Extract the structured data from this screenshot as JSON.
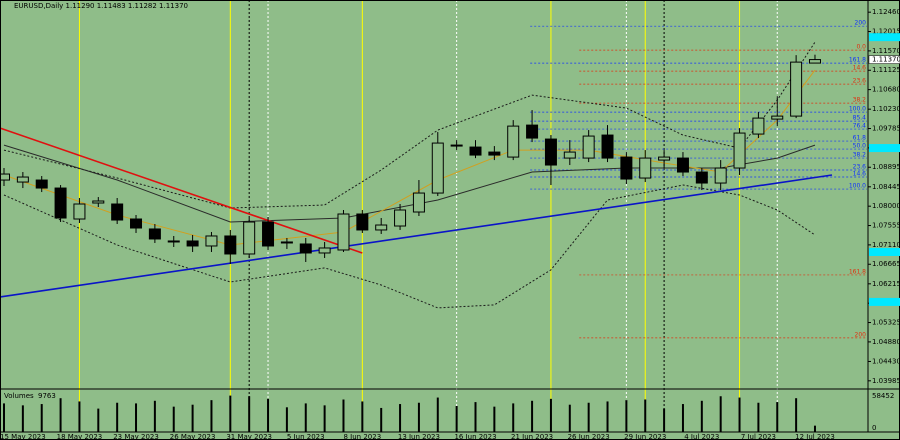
{
  "chart_data": {
    "type": "candlestick",
    "title": "EURUSD,Daily  1.11290 1.11483 1.11282 1.11370",
    "categories": [
      null,
      "15 May 2023",
      null,
      null,
      "18 May 2023",
      null,
      null,
      "23 May 2023",
      null,
      null,
      "26 May 2023",
      null,
      null,
      "31 May 2023",
      null,
      null,
      "5 Jun 2023",
      null,
      null,
      "8 Jun 2023",
      null,
      null,
      "13 Jun 2023",
      null,
      null,
      "16 Jun 2023",
      null,
      null,
      "21 Jun 2023",
      null,
      null,
      "26 Jun 2023",
      null,
      null,
      "29 Jun 2023",
      null,
      null,
      "4 Jul 2023",
      null,
      null,
      "7 Jul 2023",
      null,
      null,
      "12 Jul 2023"
    ],
    "open": [
      1.08601,
      1.08555,
      1.08601,
      1.08417,
      1.07705,
      1.08073,
      1.0805,
      1.07705,
      1.07476,
      1.07177,
      1.072,
      1.07085,
      1.07315,
      1.06901,
      1.07636,
      1.07177,
      1.07131,
      1.06924,
      1.06993,
      1.0782,
      1.07453,
      1.07544,
      1.07866,
      1.08302,
      1.09405,
      1.09359,
      1.09244,
      1.09129,
      1.09864,
      1.09543,
      1.09106,
      1.09106,
      1.09635,
      1.09129,
      1.08647,
      1.0906,
      1.09106,
      1.08785,
      1.08532,
      1.08877,
      1.09658,
      1.10002,
      1.10071,
      1.1129
    ],
    "high": [
      1.08877,
      1.08785,
      1.08693,
      1.08486,
      1.08188,
      1.0821,
      1.08188,
      1.07797,
      1.0759,
      1.07315,
      1.07338,
      1.07407,
      1.07453,
      1.07728,
      1.07751,
      1.07269,
      1.07269,
      1.07177,
      1.07912,
      1.07912,
      1.07728,
      1.0805,
      1.08601,
      1.09704,
      1.0952,
      1.0952,
      1.09382,
      1.09979,
      1.10209,
      1.09635,
      1.0952,
      1.0975,
      1.09864,
      1.09244,
      1.0929,
      1.0929,
      1.09244,
      1.08877,
      1.0906,
      1.09795,
      1.10163,
      1.1053,
      1.11472,
      1.11483
    ],
    "low": [
      1.08463,
      1.08417,
      1.08325,
      1.07636,
      1.07613,
      1.07981,
      1.0759,
      1.07384,
      1.07154,
      1.07062,
      1.06947,
      1.06947,
      1.06672,
      1.06809,
      1.06993,
      1.07016,
      1.06717,
      1.06809,
      1.06947,
      1.07384,
      1.07361,
      1.07453,
      1.07774,
      1.08234,
      1.0929,
      1.09106,
      1.0906,
      1.0906,
      1.09474,
      1.08486,
      1.08946,
      1.09014,
      1.09014,
      1.08509,
      1.08555,
      1.08877,
      1.08693,
      1.08371,
      1.08371,
      1.08716,
      1.09566,
      1.09841,
      1.10025,
      1.11282
    ],
    "close": [
      1.08739,
      1.0867,
      1.08417,
      1.07728,
      1.0805,
      1.08119,
      1.07682,
      1.07498,
      1.07246,
      1.072,
      1.07085,
      1.07315,
      1.06901,
      1.07636,
      1.07085,
      1.07154,
      1.06924,
      1.07039,
      1.0782,
      1.07453,
      1.07567,
      1.07912,
      1.08302,
      1.09451,
      1.09382,
      1.09175,
      1.09175,
      1.09841,
      1.09566,
      1.08946,
      1.09244,
      1.09612,
      1.09106,
      1.08624,
      1.09106,
      1.09129,
      1.08785,
      1.08532,
      1.08877,
      1.09681,
      1.10025,
      1.10071,
      1.11312,
      1.1137
    ],
    "up_color": "#8fbd89",
    "down_color": "#000000",
    "ylim": [
      1.0382,
      1.1274
    ],
    "yticks": [
      {
        "value": 1.1246,
        "label": "1.12460"
      },
      {
        "value": 1.12015,
        "label": "1.12015"
      },
      {
        "value": 1.1157,
        "label": "1.11570"
      },
      {
        "value": 1.11125,
        "label": "1.11125"
      },
      {
        "value": 1.1068,
        "label": "1.10680"
      },
      {
        "value": 1.1023,
        "label": "1.10230"
      },
      {
        "value": 1.09785,
        "label": "1.09785"
      },
      {
        "value": 1.0934,
        "label": "1.09340"
      },
      {
        "value": 1.08895,
        "label": "1.08895"
      },
      {
        "value": 1.08445,
        "label": "1.08445"
      },
      {
        "value": 1.08,
        "label": "1.08000"
      },
      {
        "value": 1.07555,
        "label": "1.07555"
      },
      {
        "value": 1.0711,
        "label": "1.07110"
      },
      {
        "value": 1.06665,
        "label": "1.06665"
      },
      {
        "value": 1.06215,
        "label": "1.06215"
      },
      {
        "value": 1.0577,
        "label": "1.05770"
      },
      {
        "value": 1.05325,
        "label": "1.05325"
      },
      {
        "value": 1.0488,
        "label": "1.04880"
      },
      {
        "value": 1.0443,
        "label": "1.04430"
      },
      {
        "value": 1.03985,
        "label": "1.03985"
      }
    ],
    "current_price": {
      "value": 1.1137,
      "label": "1.11370"
    },
    "highlight_levels": {
      "color": "#00e8ff",
      "values": [
        1.11886,
        1.09336,
        1.06947,
        1.05799
      ]
    },
    "indicators": [
      {
        "color": "#1a1a1a",
        "dash": "2,2",
        "x": [
          0,
          6,
          12,
          17,
          20,
          23,
          28,
          33,
          36,
          39,
          41,
          43
        ],
        "values": [
          1.0929,
          1.08647,
          1.07958,
          1.08027,
          1.08831,
          1.0975,
          1.10553,
          1.10255,
          1.09635,
          1.09336,
          1.10439,
          1.11771
        ]
      },
      {
        "color": "#1a1a1a",
        "dash": "2,2",
        "x": [
          0,
          6,
          12,
          17,
          20,
          23,
          26,
          29,
          32,
          36,
          39,
          41,
          43
        ],
        "values": [
          1.08256,
          1.07108,
          1.06258,
          1.0658,
          1.06189,
          1.05661,
          1.0573,
          1.06534,
          1.08142,
          1.08486,
          1.08256,
          1.07912,
          1.07338
        ]
      },
      {
        "color": "#2a2a2a",
        "dash": "",
        "x": [
          0,
          6,
          12,
          18,
          23,
          28,
          33,
          38,
          41,
          43
        ],
        "values": [
          1.09405,
          1.08601,
          1.07636,
          1.07728,
          1.08142,
          1.08785,
          1.08877,
          1.08877,
          1.09106,
          1.09405
        ]
      },
      {
        "color": "#d0a020",
        "dash": "",
        "x": [
          0,
          6,
          12,
          18,
          23,
          27,
          31,
          35,
          38,
          41,
          43
        ],
        "values": [
          1.08716,
          1.07797,
          1.07108,
          1.07407,
          1.08601,
          1.0929,
          1.0929,
          1.08992,
          1.08785,
          1.09979,
          1.11128
        ]
      }
    ],
    "trendlines": [
      {
        "color": "#e01010",
        "x": [
          -0.2,
          19
        ],
        "values": [
          1.09795,
          1.06924
        ]
      },
      {
        "color": "#0a14c8",
        "x": [
          -0.2,
          43.9
        ],
        "values": [
          1.05914,
          1.08716
        ]
      }
    ],
    "vertical_markers": [
      {
        "color": "#ffff00",
        "dash": "",
        "at": [
          4,
          12,
          19,
          29,
          34,
          39
        ]
      },
      {
        "color": "#ffffff",
        "dash": "2,2",
        "at": [
          14,
          24,
          33,
          41
        ]
      },
      {
        "color": "#000000",
        "dash": "2,2",
        "at": [
          13,
          35
        ]
      }
    ],
    "fibonacci": [
      {
        "color": "#1030ff",
        "start": 27.9,
        "levels": [
          {
            "label": "200",
            "price": 1.12138
          },
          {
            "label": "161.8",
            "price": 1.11289
          },
          {
            "label": "100.0",
            "price": 1.10163
          },
          {
            "label": "85.4",
            "price": 1.09956
          },
          {
            "label": "76.4",
            "price": 1.09773
          },
          {
            "label": "61.8",
            "price": 1.09497
          },
          {
            "label": "50.0",
            "price": 1.09313
          },
          {
            "label": "38.2",
            "price": 1.09106
          },
          {
            "label": "23.6",
            "price": 1.08831
          },
          {
            "label": "14.6",
            "price": 1.0867
          },
          {
            "label": "100.0",
            "price": 1.08394
          }
        ]
      },
      {
        "color": "#e03010",
        "start": 30.5,
        "levels": [
          {
            "label": "0.0",
            "price": 1.11587
          },
          {
            "label": "14.6",
            "price": 1.11105
          },
          {
            "label": "23.6",
            "price": 1.10806
          },
          {
            "label": "38.2",
            "price": 1.1037
          },
          {
            "label": "161.8",
            "price": 1.06419
          },
          {
            "label": "200",
            "price": 1.04972
          }
        ]
      }
    ],
    "volume": {
      "name": "Volumes",
      "color": "#000000",
      "values": [
        44000,
        41000,
        43000,
        52000,
        47000,
        36000,
        45000,
        44000,
        48000,
        39000,
        42000,
        49000,
        56000,
        55000,
        51000,
        38000,
        44000,
        41000,
        50000,
        47000,
        37000,
        43000,
        45000,
        53000,
        40000,
        46000,
        39000,
        44000,
        48000,
        51000,
        42000,
        45000,
        47000,
        49000,
        50000,
        36000,
        43000,
        48000,
        55000,
        53000,
        45000,
        46000,
        52000,
        9763
      ],
      "ylim": [
        0,
        58452
      ],
      "yticks": [
        58452,
        0
      ]
    }
  }
}
